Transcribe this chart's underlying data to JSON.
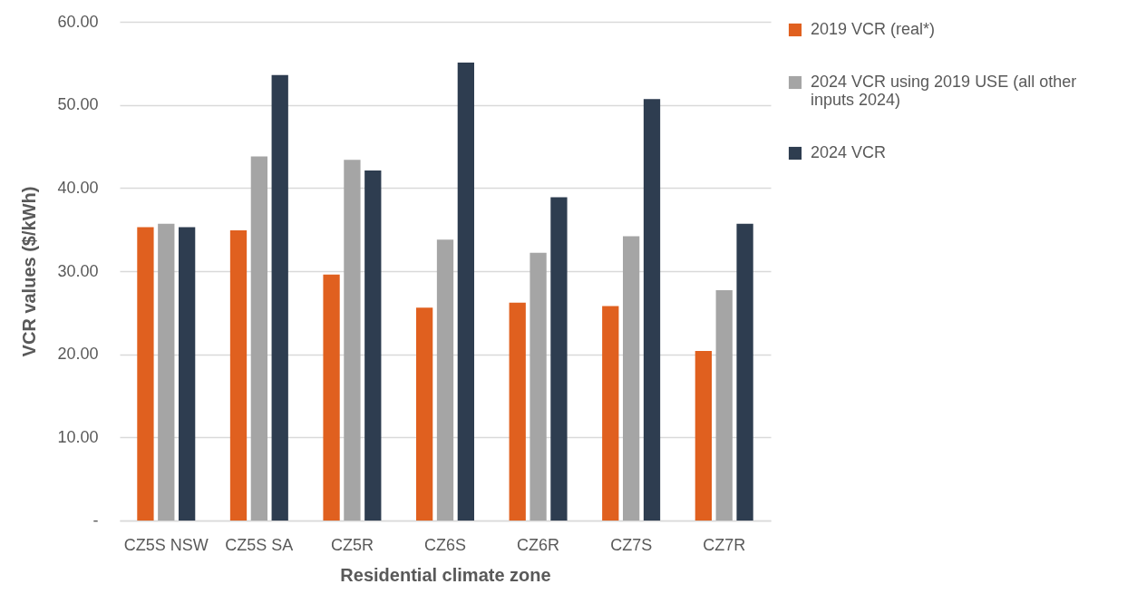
{
  "chart_data": {
    "type": "bar",
    "xlabel": "Residential climate zone",
    "ylabel": "VCR values ($/kWh)",
    "categories": [
      "CZ5S NSW",
      "CZ5S SA",
      "CZ5R",
      "CZ6S",
      "CZ6R",
      "CZ7S",
      "CZ7R"
    ],
    "series": [
      {
        "name": "2019 VCR (real*)",
        "color": "#e0601f",
        "values": [
          35.3,
          34.9,
          29.6,
          25.6,
          26.2,
          25.8,
          20.4
        ]
      },
      {
        "name": "2024 VCR using 2019 USE (all other inputs 2024)",
        "color": "#a5a5a5",
        "values": [
          35.7,
          43.8,
          43.4,
          33.8,
          32.2,
          34.2,
          27.7
        ]
      },
      {
        "name": "2024 VCR",
        "color": "#2e3d50",
        "values": [
          35.3,
          53.6,
          42.1,
          55.1,
          38.9,
          50.7,
          35.7
        ]
      }
    ],
    "ylim": [
      0,
      60
    ],
    "yticks": [
      {
        "value": 0,
        "label": "-"
      },
      {
        "value": 10,
        "label": "10.00"
      },
      {
        "value": 20,
        "label": "20.00"
      },
      {
        "value": 30,
        "label": "30.00"
      },
      {
        "value": 40,
        "label": "40.00"
      },
      {
        "value": 50,
        "label": "50.00"
      },
      {
        "value": 60,
        "label": "60.00"
      }
    ],
    "grid": "y",
    "legend": "right"
  }
}
